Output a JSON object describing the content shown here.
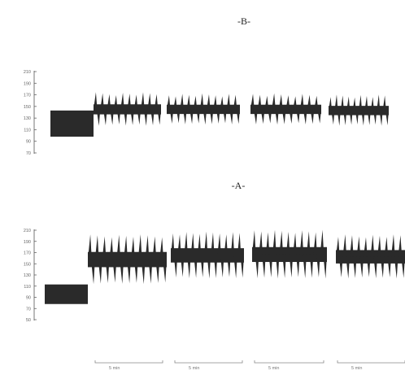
{
  "figure": {
    "panel_b_label": "-B-",
    "panel_a_label": "-A-",
    "scale_bar_label": "5 min",
    "scale_bar_count": 4,
    "trace_color": "#2a2a2a"
  },
  "chart_data": [
    {
      "type": "line",
      "panel": "B",
      "title": "-B-",
      "y_ticks": [
        210,
        190,
        170,
        150,
        130,
        110,
        90,
        70
      ],
      "ylim": [
        70,
        210
      ],
      "baseline": {
        "low": 98,
        "high": 143
      },
      "segments": [
        {
          "cycles": 10,
          "low": 118,
          "high": 172
        },
        {
          "cycles": 11,
          "low": 120,
          "high": 170
        },
        {
          "cycles": 10,
          "low": 120,
          "high": 170
        },
        {
          "cycles": 10,
          "low": 118,
          "high": 168
        }
      ],
      "grid": false
    },
    {
      "type": "line",
      "panel": "A",
      "title": "-A-",
      "y_ticks": [
        210,
        190,
        170,
        150,
        130,
        110,
        90,
        70,
        50
      ],
      "ylim": [
        50,
        210
      ],
      "baseline": {
        "low": 78,
        "high": 113
      },
      "segments": [
        {
          "cycles": 11,
          "low": 115,
          "high": 200
        },
        {
          "cycles": 11,
          "low": 125,
          "high": 205
        },
        {
          "cycles": 11,
          "low": 125,
          "high": 208
        },
        {
          "cycles": 10,
          "low": 125,
          "high": 200
        }
      ],
      "grid": false
    }
  ]
}
